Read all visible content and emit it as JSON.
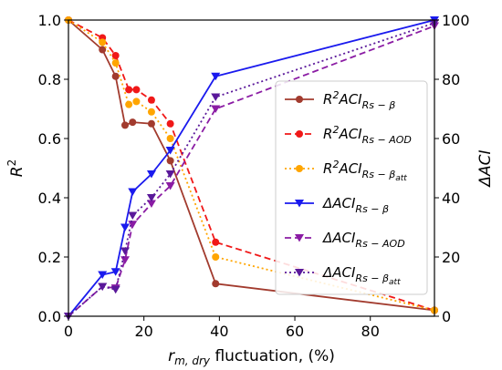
{
  "chart_data": {
    "type": "line",
    "xlabel": {
      "main": "r",
      "sub": "m, dry",
      "rest": " fluctuation, (%)"
    },
    "ylabel_left": {
      "main": "R",
      "sup": "2"
    },
    "ylabel_right": "ΔACI",
    "xlim": [
      0,
      97
    ],
    "ylim_left": [
      0,
      1.0
    ],
    "ylim_right": [
      0,
      100
    ],
    "x_ticks": [
      0,
      20,
      40,
      60,
      80
    ],
    "y_left_ticks": [
      0.0,
      0.2,
      0.4,
      0.6,
      0.8,
      1.0
    ],
    "y_right_ticks": [
      0,
      20,
      40,
      60,
      80,
      100
    ],
    "grid": false,
    "legend_position": "center-right",
    "series": [
      {
        "name": "R²ACI_Rs−β",
        "label_main": "R",
        "label_sup": "2",
        "label_base": "ACI",
        "label_sub": "Rs − β",
        "label_subsub": "",
        "axis": "left",
        "color": "#a23b2e",
        "line_style": "solid",
        "marker": "circle",
        "x": [
          0,
          9,
          12.5,
          15,
          17,
          22,
          27,
          39,
          97
        ],
        "values": [
          1.0,
          0.9,
          0.81,
          0.645,
          0.655,
          0.65,
          0.525,
          0.11,
          0.02
        ]
      },
      {
        "name": "R²ACI_Rs−AOD",
        "label_main": "R",
        "label_sup": "2",
        "label_base": "ACI",
        "label_sub": "Rs − AOD",
        "label_subsub": "",
        "axis": "left",
        "color": "#f01818",
        "line_style": "dashed",
        "marker": "circle",
        "x": [
          0,
          9,
          12.5,
          16,
          18,
          22,
          27,
          39,
          97
        ],
        "values": [
          1.0,
          0.94,
          0.88,
          0.765,
          0.765,
          0.73,
          0.65,
          0.25,
          0.02
        ]
      },
      {
        "name": "R²ACI_Rs−βatt",
        "label_main": "R",
        "label_sup": "2",
        "label_base": "ACI",
        "label_sub": "Rs − β",
        "label_subsub": "att",
        "axis": "left",
        "color": "#ffa500",
        "line_style": "dotted",
        "marker": "circle",
        "x": [
          0,
          9,
          12.5,
          16,
          18,
          22,
          27,
          39,
          97
        ],
        "values": [
          1.0,
          0.925,
          0.855,
          0.715,
          0.725,
          0.69,
          0.6,
          0.2,
          0.02
        ]
      },
      {
        "name": "ΔACI_Rs−β",
        "label_main": "ΔACI",
        "label_sup": "",
        "label_base": "",
        "label_sub": "Rs − β",
        "label_subsub": "",
        "axis": "right",
        "color": "#1a1aee",
        "line_style": "solid",
        "marker": "triangle-down",
        "x": [
          0,
          9,
          12.5,
          15,
          17,
          22,
          27,
          39,
          97
        ],
        "values": [
          0,
          14,
          15,
          30,
          42,
          48,
          56,
          81,
          100
        ]
      },
      {
        "name": "ΔACI_Rs−AOD",
        "label_main": "ΔACI",
        "label_sup": "",
        "label_base": "",
        "label_sub": "Rs − AOD",
        "label_subsub": "",
        "axis": "right",
        "color": "#8b1ca4",
        "line_style": "dashed",
        "marker": "triangle-down",
        "x": [
          0,
          9,
          12.5,
          15,
          17,
          22,
          27,
          39,
          97
        ],
        "values": [
          0,
          10,
          9.5,
          19,
          31,
          38,
          44,
          70,
          98
        ]
      },
      {
        "name": "ΔACI_Rs−βatt",
        "label_main": "ΔACI",
        "label_sup": "",
        "label_base": "",
        "label_sub": "Rs − β",
        "label_subsub": "att",
        "axis": "right",
        "color": "#5a189a",
        "line_style": "dotted",
        "marker": "triangle-down",
        "x": [
          0,
          9,
          12.5,
          15,
          17,
          22,
          27,
          39,
          97
        ],
        "values": [
          0,
          10,
          9,
          22,
          34,
          40,
          48,
          74,
          99
        ]
      }
    ]
  }
}
